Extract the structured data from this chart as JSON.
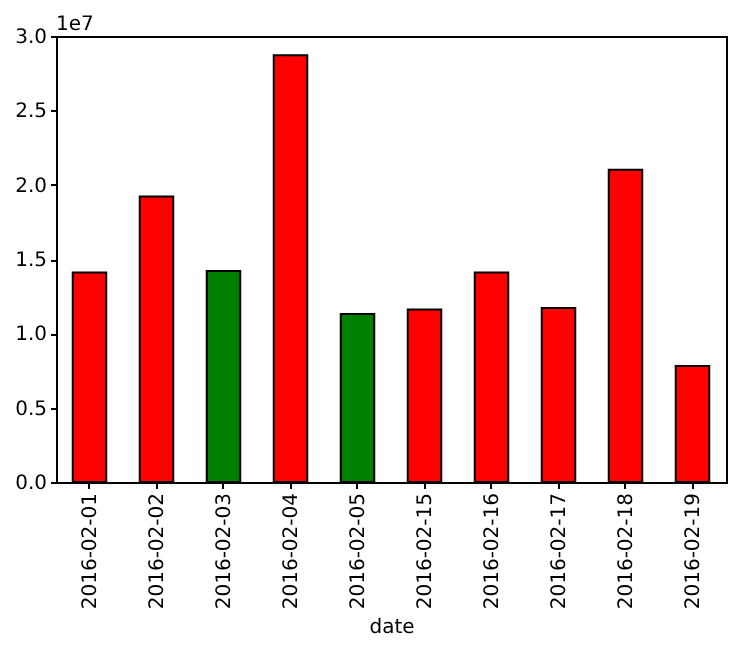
{
  "chart_data": {
    "type": "bar",
    "xlabel": "date",
    "categories": [
      "2016-02-01",
      "2016-02-02",
      "2016-02-03",
      "2016-02-04",
      "2016-02-05",
      "2016-02-15",
      "2016-02-16",
      "2016-02-17",
      "2016-02-18",
      "2016-02-19"
    ],
    "values": [
      1.41,
      1.92,
      1.42,
      2.87,
      1.13,
      1.16,
      1.41,
      1.17,
      2.1,
      0.78
    ],
    "colors": [
      "#ff0000",
      "#ff0000",
      "#008000",
      "#ff0000",
      "#008000",
      "#ff0000",
      "#ff0000",
      "#ff0000",
      "#ff0000",
      "#ff0000"
    ],
    "ylim": [
      0,
      3
    ],
    "yticks": [
      {
        "value": 0,
        "label": "0.0"
      },
      0.5,
      {
        "value": 1,
        "label": "1.0"
      },
      1.5,
      {
        "value": 2,
        "label": "2.0"
      },
      2.5,
      {
        "value": 3,
        "label": "3.0"
      }
    ],
    "annotations": [
      "1e7"
    ],
    "grid": false
  }
}
